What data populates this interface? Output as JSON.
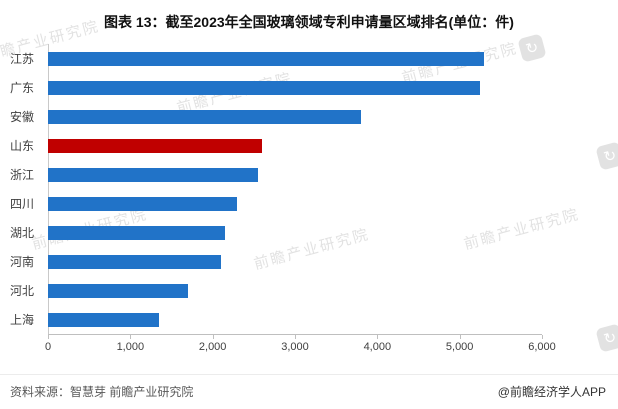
{
  "title": "图表 13：截至2023年全国玻璃领域专利申请量区域排名(单位：件)",
  "chart_data": {
    "type": "bar",
    "orientation": "horizontal",
    "title": "图表 13：截至2023年全国玻璃领域专利申请量区域排名(单位：件)",
    "unit": "件",
    "categories": [
      "江苏",
      "广东",
      "安徽",
      "山东",
      "浙江",
      "四川",
      "湖北",
      "河南",
      "河北",
      "上海"
    ],
    "values": [
      5300,
      5250,
      3800,
      2600,
      2550,
      2300,
      2150,
      2100,
      1700,
      1350
    ],
    "highlight_category": "山东",
    "bar_color": "#2173C8",
    "highlight_color": "#C00000",
    "xlim": [
      0,
      6000
    ],
    "x_ticks": [
      0,
      1000,
      2000,
      3000,
      4000,
      5000,
      6000
    ],
    "x_tick_labels": [
      "0",
      "1,000",
      "2,000",
      "3,000",
      "4,000",
      "5,000",
      "6,000"
    ],
    "grid": false,
    "legend": "none"
  },
  "footer": {
    "source": "资料来源：智慧芽 前瞻产业研究院",
    "credit": "@前瞻经济学人APP"
  },
  "watermark": {
    "text": "前瞻产业研究院",
    "icon": "circular-arrows"
  }
}
